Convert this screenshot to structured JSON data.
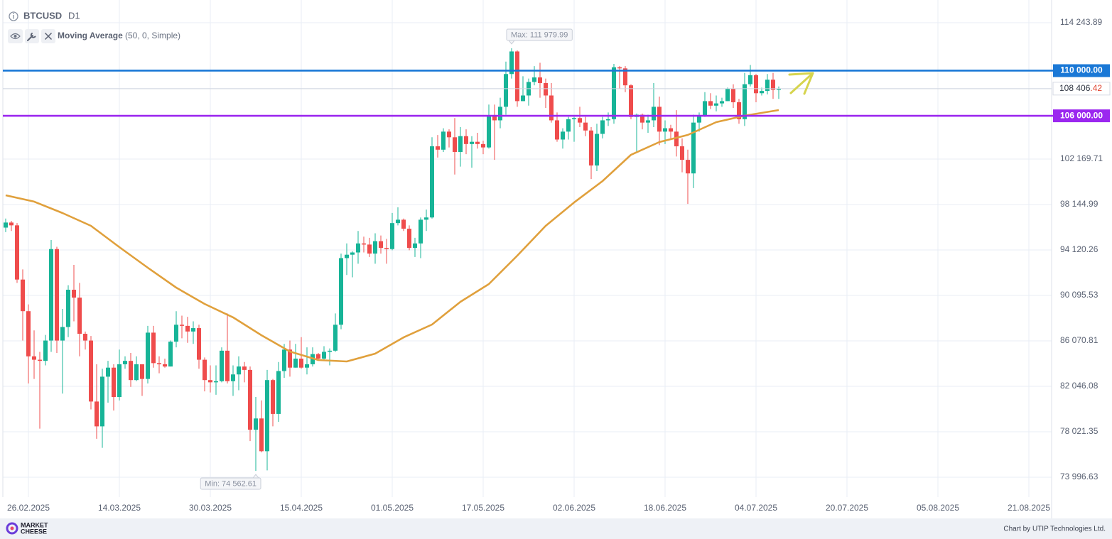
{
  "chart_data": {
    "type": "candlestick",
    "title": "BTCUSD",
    "timeframe": "D1",
    "x": [
      "22.02.2025",
      "23.02.2025",
      "24.02.2025",
      "25.02.2025",
      "26.02.2025",
      "27.02.2025",
      "28.02.2025",
      "01.03.2025",
      "02.03.2025",
      "03.03.2025",
      "04.03.2025",
      "05.03.2025",
      "06.03.2025",
      "07.03.2025",
      "08.03.2025",
      "09.03.2025",
      "10.03.2025",
      "11.03.2025",
      "12.03.2025",
      "13.03.2025",
      "14.03.2025",
      "15.03.2025",
      "16.03.2025",
      "17.03.2025",
      "18.03.2025",
      "19.03.2025",
      "20.03.2025",
      "21.03.2025",
      "22.03.2025",
      "23.03.2025",
      "24.03.2025",
      "25.03.2025",
      "26.03.2025",
      "27.03.2025",
      "28.03.2025",
      "29.03.2025",
      "30.03.2025",
      "31.03.2025",
      "01.04.2025",
      "02.04.2025",
      "03.04.2025",
      "04.04.2025",
      "05.04.2025",
      "06.04.2025",
      "07.04.2025",
      "08.04.2025",
      "09.04.2025",
      "10.04.2025",
      "11.04.2025",
      "12.04.2025",
      "13.04.2025",
      "14.04.2025",
      "15.04.2025",
      "16.04.2025",
      "17.04.2025",
      "18.04.2025",
      "19.04.2025",
      "20.04.2025",
      "21.04.2025",
      "22.04.2025",
      "23.04.2025",
      "24.04.2025",
      "25.04.2025",
      "26.04.2025",
      "27.04.2025",
      "28.04.2025",
      "29.04.2025",
      "30.04.2025",
      "01.05.2025",
      "02.05.2025",
      "03.05.2025",
      "04.05.2025",
      "05.05.2025",
      "06.05.2025",
      "07.05.2025",
      "08.05.2025",
      "09.05.2025",
      "10.05.2025",
      "11.05.2025",
      "12.05.2025",
      "13.05.2025",
      "14.05.2025",
      "15.05.2025",
      "16.05.2025",
      "17.05.2025",
      "18.05.2025",
      "19.05.2025",
      "20.05.2025",
      "21.05.2025",
      "22.05.2025",
      "23.05.2025",
      "24.05.2025",
      "25.05.2025",
      "26.05.2025",
      "27.05.2025",
      "28.05.2025",
      "29.05.2025",
      "30.05.2025",
      "31.05.2025",
      "01.06.2025",
      "02.06.2025",
      "03.06.2025",
      "04.06.2025",
      "05.06.2025",
      "06.06.2025",
      "07.06.2025",
      "08.06.2025",
      "09.06.2025",
      "10.06.2025",
      "11.06.2025",
      "12.06.2025",
      "13.06.2025",
      "14.06.2025",
      "15.06.2025",
      "16.06.2025",
      "17.06.2025",
      "18.06.2025",
      "19.06.2025",
      "20.06.2025",
      "21.06.2025",
      "22.06.2025",
      "23.06.2025",
      "24.06.2025",
      "25.06.2025",
      "26.06.2025",
      "27.06.2025",
      "28.06.2025",
      "29.06.2025",
      "30.06.2025",
      "01.07.2025",
      "02.07.2025",
      "03.07.2025",
      "04.07.2025",
      "05.07.2025",
      "06.07.2025",
      "07.07.2025",
      "08.07.2025"
    ],
    "open": [
      96100,
      96550,
      96300,
      91500,
      88700,
      84700,
      84400,
      84300,
      86100,
      94200,
      86100,
      87300,
      90600,
      89900,
      86700,
      86100,
      80700,
      78500,
      82900,
      83700,
      81100,
      84000,
      84300,
      82600,
      84000,
      82700,
      86800,
      84100,
      84000,
      83800,
      86000,
      87500,
      87400,
      86900,
      87200,
      84400,
      82600,
      82400,
      82500,
      85200,
      82500,
      83100,
      83800,
      83500,
      78200,
      79200,
      76300,
      82600,
      79600,
      83400,
      85300,
      83700,
      84500,
      83700,
      84000,
      84900,
      84500,
      85100,
      85200,
      87500,
      93400,
      93700,
      93900,
      94700,
      94600,
      93800,
      94900,
      94300,
      94200,
      96500,
      96800,
      96000,
      94300,
      94700,
      96800,
      97000,
      103300,
      103000,
      104600,
      104100,
      102800,
      104200,
      103500,
      103700,
      103500,
      103200,
      106000,
      105600,
      106800,
      109700,
      111700,
      107300,
      107800,
      109000,
      109400,
      108900,
      107800,
      105600,
      103900,
      104600,
      105700,
      105800,
      105400,
      104700,
      101600,
      104400,
      105600,
      105700,
      110300,
      110200,
      108700,
      105900,
      106100,
      105400,
      105600,
      106800,
      104600,
      104900,
      104600,
      103300,
      102100,
      100900,
      105400,
      106000,
      107300,
      106900,
      107100,
      107300,
      108400,
      107200,
      105700,
      108800,
      109600,
      108000,
      108200,
      109200,
      108300
    ],
    "high": [
      96900,
      96700,
      96500,
      92400,
      89300,
      87000,
      85100,
      86600,
      95000,
      94400,
      88900,
      91000,
      92800,
      91200,
      86900,
      86500,
      84000,
      83600,
      84300,
      84000,
      85300,
      84700,
      85000,
      84700,
      84000,
      87400,
      87400,
      84700,
      84500,
      86100,
      88700,
      88300,
      88200,
      87800,
      87500,
      84600,
      83900,
      83900,
      85500,
      88500,
      83900,
      84700,
      84200,
      83800,
      81100,
      80800,
      83500,
      82700,
      84200,
      85800,
      86100,
      85800,
      86400,
      85500,
      85500,
      85000,
      85600,
      85400,
      88500,
      93800,
      94700,
      94000,
      95800,
      95300,
      95200,
      95600,
      95400,
      95100,
      97400,
      97900,
      96900,
      96300,
      95200,
      97000,
      97700,
      104100,
      104300,
      104900,
      104800,
      105800,
      105000,
      104800,
      104200,
      104500,
      103800,
      107000,
      107000,
      107600,
      110800,
      111979.99,
      111800,
      109500,
      109300,
      110400,
      110700,
      109300,
      108900,
      106300,
      104900,
      105900,
      105900,
      106800,
      105900,
      105000,
      105300,
      105900,
      106300,
      110600,
      110400,
      110400,
      108800,
      106200,
      106200,
      106100,
      108900,
      107700,
      105600,
      105200,
      106500,
      104000,
      103000,
      106100,
      106300,
      108100,
      108000,
      107800,
      107600,
      108500,
      108800,
      107500,
      109800,
      110500,
      109700,
      108500,
      109700,
      109800,
      108600
    ],
    "low": [
      95700,
      95800,
      91200,
      86100,
      82300,
      82700,
      78300,
      83900,
      85100,
      85000,
      81400,
      86400,
      87800,
      84700,
      85300,
      80000,
      77400,
      76600,
      80600,
      79900,
      80800,
      83600,
      82000,
      82500,
      81200,
      82300,
      83700,
      83200,
      83700,
      83800,
      85500,
      86300,
      85900,
      85800,
      83600,
      81600,
      81500,
      81300,
      82400,
      82300,
      81200,
      81700,
      82400,
      77200,
      74562.61,
      76200,
      74600,
      78500,
      78900,
      82800,
      82900,
      83700,
      83600,
      83100,
      83800,
      84300,
      84400,
      83900,
      85100,
      87100,
      91900,
      91700,
      92900,
      93900,
      93500,
      92900,
      93800,
      92900,
      94100,
      96300,
      95800,
      94100,
      93500,
      93400,
      95800,
      96900,
      102300,
      102800,
      103200,
      100800,
      101500,
      102600,
      101400,
      103100,
      102600,
      103100,
      102100,
      104900,
      106100,
      109300,
      106800,
      107300,
      106900,
      108700,
      107600,
      106700,
      105400,
      103700,
      103100,
      103900,
      103700,
      105000,
      104200,
      100400,
      101100,
      104000,
      105100,
      105300,
      108400,
      108100,
      105700,
      102800,
      104800,
      104500,
      105000,
      103400,
      103500,
      104000,
      102400,
      101000,
      98200,
      99600,
      104600,
      105900,
      106600,
      106400,
      106800,
      107300,
      106700,
      105300,
      105100,
      108600,
      107200,
      107800,
      107900,
      107500,
      107500
    ],
    "close": [
      96550,
      96300,
      91500,
      88700,
      84700,
      84400,
      84300,
      86100,
      94200,
      86100,
      87300,
      90600,
      89900,
      86700,
      86100,
      80700,
      78500,
      82900,
      83700,
      81100,
      84000,
      84300,
      82600,
      84000,
      82700,
      86800,
      84100,
      84000,
      83800,
      86000,
      87500,
      87400,
      86900,
      87200,
      84400,
      82600,
      82400,
      82500,
      85200,
      82500,
      83100,
      83800,
      83500,
      78200,
      79200,
      76300,
      82600,
      79600,
      83400,
      85300,
      83700,
      84500,
      83700,
      84000,
      84900,
      84500,
      85100,
      85200,
      87500,
      93400,
      93700,
      93900,
      94700,
      94600,
      93800,
      94900,
      94300,
      94200,
      96500,
      96800,
      96000,
      94300,
      94700,
      96800,
      97000,
      103300,
      103000,
      104600,
      104100,
      102800,
      104200,
      103500,
      103700,
      103500,
      103200,
      106000,
      105600,
      106800,
      109700,
      111700,
      107300,
      107800,
      109000,
      109400,
      108900,
      107800,
      105600,
      103900,
      104600,
      105700,
      105800,
      105400,
      104700,
      101600,
      104400,
      105600,
      105700,
      110300,
      110200,
      108700,
      105900,
      106100,
      105400,
      105600,
      106800,
      104600,
      104900,
      104600,
      103300,
      102100,
      100900,
      105400,
      106000,
      107300,
      106900,
      107100,
      107300,
      108400,
      107200,
      105700,
      108800,
      109600,
      108000,
      108200,
      109200,
      108300,
      108406.42
    ],
    "up_color": "#17b497",
    "down_color": "#ef4c4c",
    "moving_average": {
      "name": "Moving Average",
      "params": "(50, 0, Simple)",
      "color": "#e0a03c",
      "x": [
        "22.02.2025",
        "27.02.2025",
        "04.03.2025",
        "09.03.2025",
        "14.03.2025",
        "19.03.2025",
        "24.03.2025",
        "29.03.2025",
        "03.04.2025",
        "08.04.2025",
        "13.04.2025",
        "18.04.2025",
        "23.04.2025",
        "28.04.2025",
        "03.05.2025",
        "08.05.2025",
        "13.05.2025",
        "18.05.2025",
        "23.05.2025",
        "28.05.2025",
        "02.06.2025",
        "07.06.2025",
        "12.06.2025",
        "17.06.2025",
        "22.06.2025",
        "27.06.2025",
        "02.07.2025",
        "08.07.2025"
      ],
      "values": [
        98960,
        98400,
        97390,
        96260,
        94370,
        92550,
        90790,
        89340,
        88150,
        86570,
        85130,
        84370,
        84250,
        84940,
        86380,
        87520,
        89530,
        91100,
        93620,
        96260,
        98330,
        100220,
        102550,
        103680,
        104310,
        105440,
        106010,
        106510
      ]
    },
    "xlim": [
      "21.02.2025",
      "25.08.2025"
    ],
    "xticks": [
      "26.02.2025",
      "14.03.2025",
      "30.03.2025",
      "15.04.2025",
      "01.05.2025",
      "17.05.2025",
      "02.06.2025",
      "18.06.2025",
      "04.07.2025",
      "20.07.2025",
      "05.08.2025",
      "21.08.2025"
    ],
    "ylim": [
      72236,
      116256
    ],
    "yticks": [
      {
        "value": 114243.89,
        "label": "114 243.89"
      },
      {
        "value": 102169.71,
        "label": "102 169.71"
      },
      {
        "value": 98144.99,
        "label": "98 144.99"
      },
      {
        "value": 94120.26,
        "label": "94 120.26"
      },
      {
        "value": 90095.53,
        "label": "90 095.53"
      },
      {
        "value": 86070.81,
        "label": "86 070.81"
      },
      {
        "value": 82046.08,
        "label": "82 046.08"
      },
      {
        "value": 78021.35,
        "label": "78 021.35"
      },
      {
        "value": 73996.63,
        "label": "73 996.63"
      }
    ],
    "grid": true,
    "levels": [
      {
        "value": 110000,
        "label": "110 000.00",
        "color": "#1a78d6"
      },
      {
        "value": 106000,
        "label": "106 000.00",
        "color": "#9b27ef"
      }
    ],
    "last_price": {
      "value": 108406.42,
      "label": "108 406.42"
    },
    "annotations": [
      {
        "x": "22.05.2025",
        "value": 111979.99,
        "label": "Max: 111 979.99",
        "anchor": "high"
      },
      {
        "x": "07.04.2025",
        "value": 74562.61,
        "label": "Min: 74 562.61",
        "anchor": "low"
      }
    ]
  },
  "footer": {
    "logo": [
      "MARKET",
      "CHEESE"
    ],
    "credit": "Chart by UTIP Technologies Ltd."
  }
}
